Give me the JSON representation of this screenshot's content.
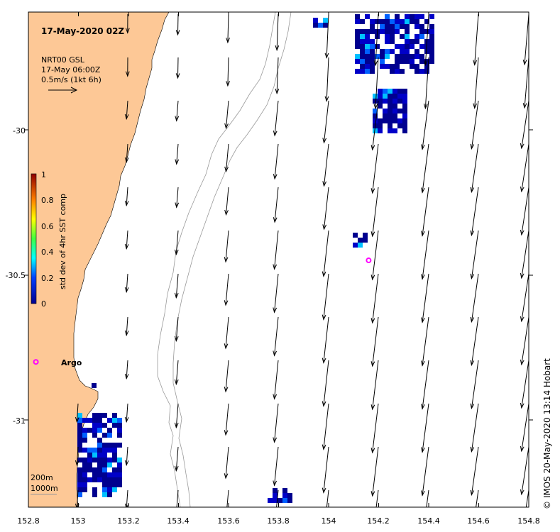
{
  "map": {
    "title": "17-May-2020 02Z",
    "product": "NRT00 GSL",
    "product_time": "17-May 06:00Z",
    "arrow_scale_label": "0.5m/s (1kt 6h)",
    "argo_label": "Argo",
    "depth_contour_1": "200m",
    "depth_contour_2": "1000m",
    "credit": "© IMOS 20-May-2020 13:14 Hobart",
    "x_ticks": [
      "152.8",
      "153",
      "153.2",
      "153.4",
      "153.6",
      "153.8",
      "154",
      "154.2",
      "154.4",
      "154.6",
      "154.8"
    ],
    "y_ticks": [
      "-30",
      "-30.5",
      "-31"
    ],
    "colorbar": {
      "title": "std dev of 4hr SST comp",
      "ticks": [
        "1",
        "0.8",
        "0.6",
        "0.4",
        "0.2",
        "0"
      ]
    },
    "colors": {
      "land": "#fdc896",
      "arrow": "#000000",
      "contour": "#999999",
      "argo": "#ff00ff"
    },
    "argo_positions": [
      [
        152.83,
        -30.8
      ],
      [
        154.16,
        -30.45
      ]
    ]
  }
}
